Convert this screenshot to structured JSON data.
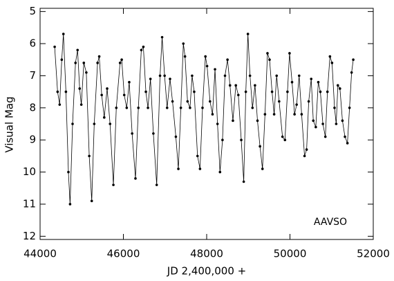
{
  "chart_data": {
    "type": "line",
    "xlabel": "JD 2,400,000 +",
    "ylabel": "Visual Mag",
    "annotation": "AAVSO",
    "xlim": [
      44000,
      52000
    ],
    "xticks": [
      44000,
      46000,
      48000,
      50000,
      52000
    ],
    "ylim": [
      12.1,
      4.9
    ],
    "yticks": [
      5,
      6,
      7,
      8,
      9,
      10,
      11,
      12
    ],
    "color": "#000000",
    "markers": true,
    "x": [
      44350,
      44420,
      44470,
      44520,
      44560,
      44620,
      44680,
      44720,
      44780,
      44850,
      44900,
      44950,
      44990,
      45050,
      45110,
      45180,
      45240,
      45300,
      45380,
      45420,
      45480,
      45540,
      45610,
      45680,
      45760,
      45830,
      45920,
      45960,
      46020,
      46080,
      46140,
      46210,
      46290,
      46360,
      46430,
      46480,
      46540,
      46590,
      46650,
      46720,
      46800,
      46880,
      46930,
      46990,
      47050,
      47120,
      47180,
      47260,
      47320,
      47380,
      47440,
      47480,
      47540,
      47600,
      47650,
      47700,
      47780,
      47840,
      47900,
      47970,
      48010,
      48080,
      48140,
      48200,
      48260,
      48320,
      48380,
      48440,
      48500,
      48560,
      48630,
      48700,
      48760,
      48830,
      48890,
      48940,
      48990,
      49040,
      49100,
      49160,
      49220,
      49280,
      49340,
      49400,
      49460,
      49510,
      49570,
      49620,
      49680,
      49740,
      49820,
      49880,
      49940,
      49990,
      50050,
      50110,
      50160,
      50220,
      50280,
      50350,
      50400,
      50450,
      50510,
      50560,
      50620,
      50680,
      50730,
      50790,
      50850,
      50900,
      50960,
      51010,
      51070,
      51110,
      51150,
      51200,
      51260,
      51320,
      51380,
      51430,
      51480,
      51520
    ],
    "values": [
      6.1,
      7.5,
      7.9,
      6.5,
      5.7,
      7.5,
      10.0,
      11.0,
      8.5,
      6.6,
      6.2,
      7.4,
      7.9,
      6.6,
      6.9,
      9.5,
      10.9,
      8.5,
      6.6,
      6.4,
      7.6,
      8.3,
      7.4,
      8.5,
      10.4,
      8.0,
      6.6,
      6.5,
      7.6,
      8.0,
      7.2,
      8.8,
      10.2,
      8.0,
      6.2,
      6.1,
      7.5,
      8.0,
      7.1,
      8.8,
      10.4,
      7.0,
      5.8,
      7.0,
      8.0,
      7.1,
      7.8,
      8.9,
      9.9,
      8.0,
      6.0,
      6.4,
      7.8,
      8.0,
      7.0,
      7.5,
      9.5,
      9.9,
      8.0,
      6.4,
      6.7,
      7.8,
      8.2,
      6.8,
      8.5,
      10.0,
      9.0,
      7.0,
      6.5,
      7.3,
      8.4,
      7.3,
      7.6,
      9.0,
      10.3,
      7.5,
      5.7,
      7.0,
      8.0,
      7.3,
      8.4,
      9.2,
      9.9,
      8.2,
      6.3,
      6.5,
      7.5,
      8.2,
      7.0,
      7.8,
      8.9,
      9.0,
      7.5,
      6.3,
      7.2,
      8.2,
      7.9,
      7.0,
      8.2,
      9.5,
      9.3,
      7.8,
      7.1,
      8.4,
      8.6,
      7.2,
      7.5,
      8.5,
      8.9,
      7.5,
      6.4,
      6.6,
      8.0,
      8.5,
      7.3,
      7.4,
      8.4,
      8.9,
      9.1,
      8.0,
      6.9,
      6.5
    ]
  }
}
